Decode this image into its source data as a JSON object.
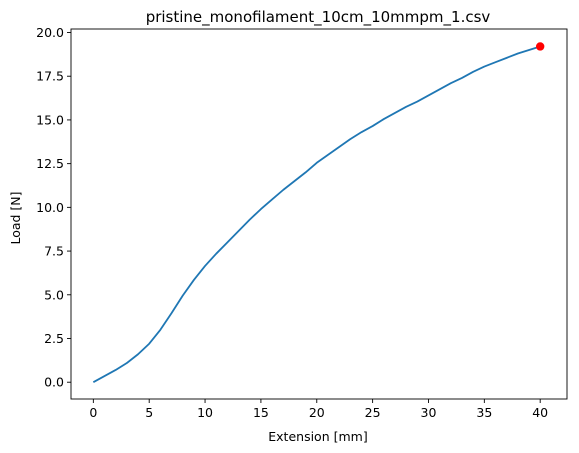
{
  "chart_data": {
    "type": "line",
    "title": "pristine_monofilament_10cm_10mmpm_1.csv",
    "xlabel": "Extension [mm]",
    "ylabel": "Load [N]",
    "xlim": [
      -2,
      42.4
    ],
    "ylim": [
      -0.96,
      20.2
    ],
    "xticks": [
      0,
      5,
      10,
      15,
      20,
      25,
      30,
      35,
      40
    ],
    "xtick_labels": [
      "0",
      "5",
      "10",
      "15",
      "20",
      "25",
      "30",
      "35",
      "40"
    ],
    "yticks": [
      0,
      2.5,
      5,
      7.5,
      10,
      12.5,
      15,
      17.5,
      20
    ],
    "ytick_labels": [
      "0.0",
      "2.5",
      "5.0",
      "7.5",
      "10.0",
      "12.5",
      "15.0",
      "17.5",
      "20.0"
    ],
    "grid": false,
    "series": [
      {
        "color": "#1f77b4",
        "x": [
          0,
          1,
          2,
          3,
          4,
          5,
          6,
          7,
          8,
          9,
          10,
          11,
          12,
          13,
          14,
          15,
          16,
          17,
          18,
          19,
          20,
          21,
          22,
          23,
          24,
          25,
          26,
          27,
          28,
          29,
          30,
          31,
          32,
          33,
          34,
          35,
          36,
          37,
          38,
          39,
          40
        ],
        "y": [
          0,
          0.35,
          0.7,
          1.1,
          1.6,
          2.2,
          3.0,
          3.95,
          4.95,
          5.85,
          6.65,
          7.35,
          8.0,
          8.65,
          9.3,
          9.9,
          10.45,
          11.0,
          11.5,
          12.0,
          12.55,
          13.0,
          13.45,
          13.9,
          14.3,
          14.65,
          15.05,
          15.4,
          15.75,
          16.05,
          16.4,
          16.75,
          17.1,
          17.4,
          17.75,
          18.05,
          18.3,
          18.55,
          18.8,
          19.0,
          19.2
        ]
      }
    ],
    "highlight_point": {
      "x": 40,
      "y": 19.2,
      "color": "#ff0000"
    }
  }
}
